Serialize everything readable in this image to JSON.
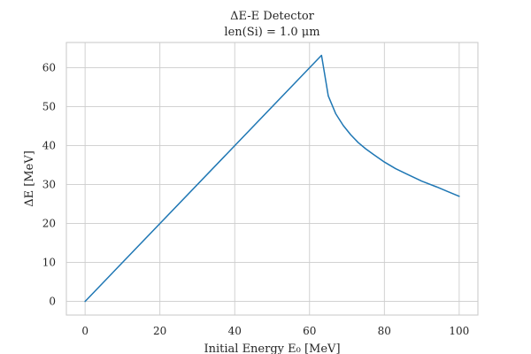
{
  "chart_data": {
    "type": "line",
    "title": "ΔE-E Detector",
    "subtitle": "len(Si) = 1.0 μm",
    "xlabel": "Initial Energy E₀ [MeV]",
    "ylabel": "ΔE [MeV]",
    "xlim": [
      -5,
      105
    ],
    "ylim": [
      -3.5,
      66.5
    ],
    "xticks": [
      0,
      20,
      40,
      60,
      80,
      100
    ],
    "yticks": [
      0,
      10,
      20,
      30,
      40,
      50,
      60
    ],
    "grid": true,
    "line_color": "#1f77b4",
    "series": [
      {
        "x": [
          0,
          63.2,
          65,
          67,
          69,
          71,
          73,
          75,
          77,
          80,
          83,
          86,
          90,
          94,
          97,
          100
        ],
        "y": [
          0,
          63.2,
          52.8,
          48.2,
          45.2,
          42.8,
          40.8,
          39.2,
          37.8,
          35.8,
          34.1,
          32.7,
          30.9,
          29.4,
          28.2,
          27.0
        ]
      }
    ]
  }
}
